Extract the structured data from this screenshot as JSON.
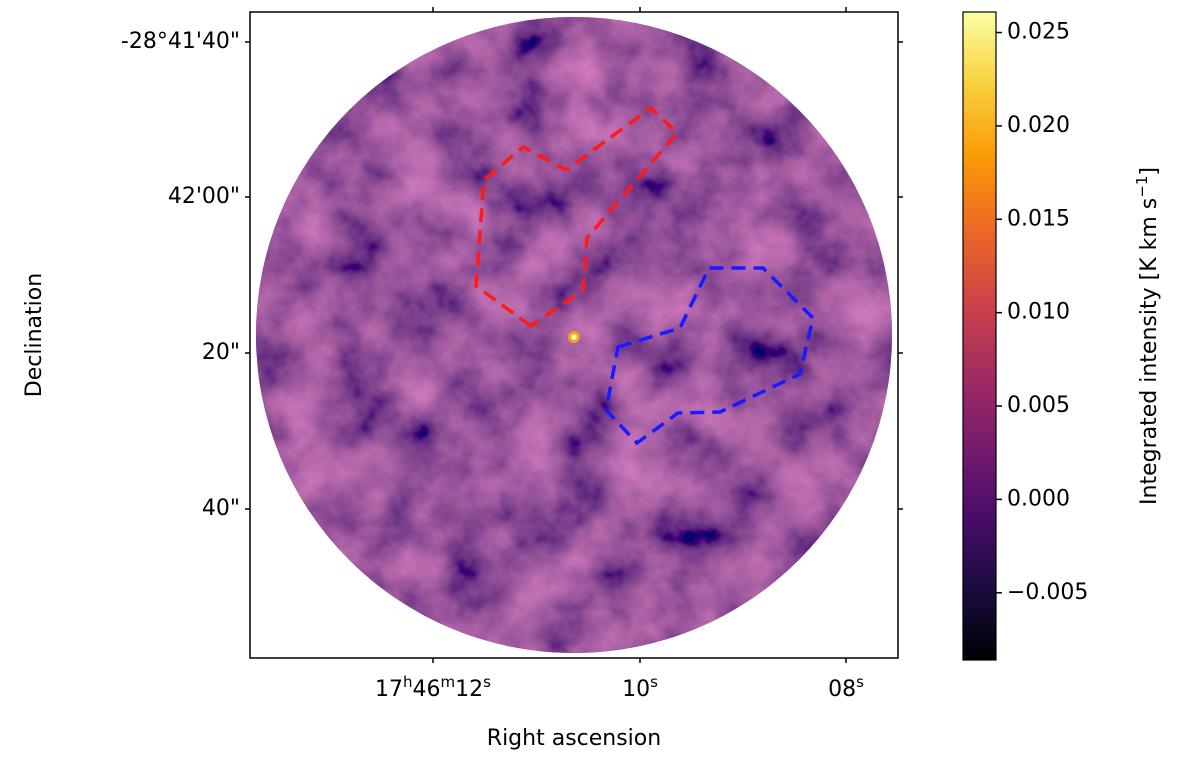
{
  "chart_data": {
    "type": "image",
    "xlabel": "Right ascension",
    "ylabel": "Declination",
    "xticks": [
      {
        "parts": [
          "17",
          "h",
          "46",
          "m",
          "12",
          "s"
        ]
      },
      {
        "parts": [
          "10",
          "s"
        ]
      },
      {
        "parts": [
          "08",
          "s"
        ]
      }
    ],
    "yticks": [
      "-28°41'40\"",
      "42'00\"",
      "20\"",
      "40\""
    ],
    "colorbar": {
      "colormap": "inferno",
      "lim": [
        -0.0086,
        0.0261
      ],
      "ticks": [
        {
          "value": -0.005,
          "label": "−0.005"
        },
        {
          "value": 0,
          "label": "0.000"
        },
        0.005,
        {
          "value": 0.01,
          "label": "0.010"
        },
        0.015,
        {
          "value": 0.02,
          "label": "0.020"
        },
        0.025
      ],
      "label_parts": [
        "Integrated intensity [K km s",
        "−1",
        "]"
      ]
    }
  }
}
